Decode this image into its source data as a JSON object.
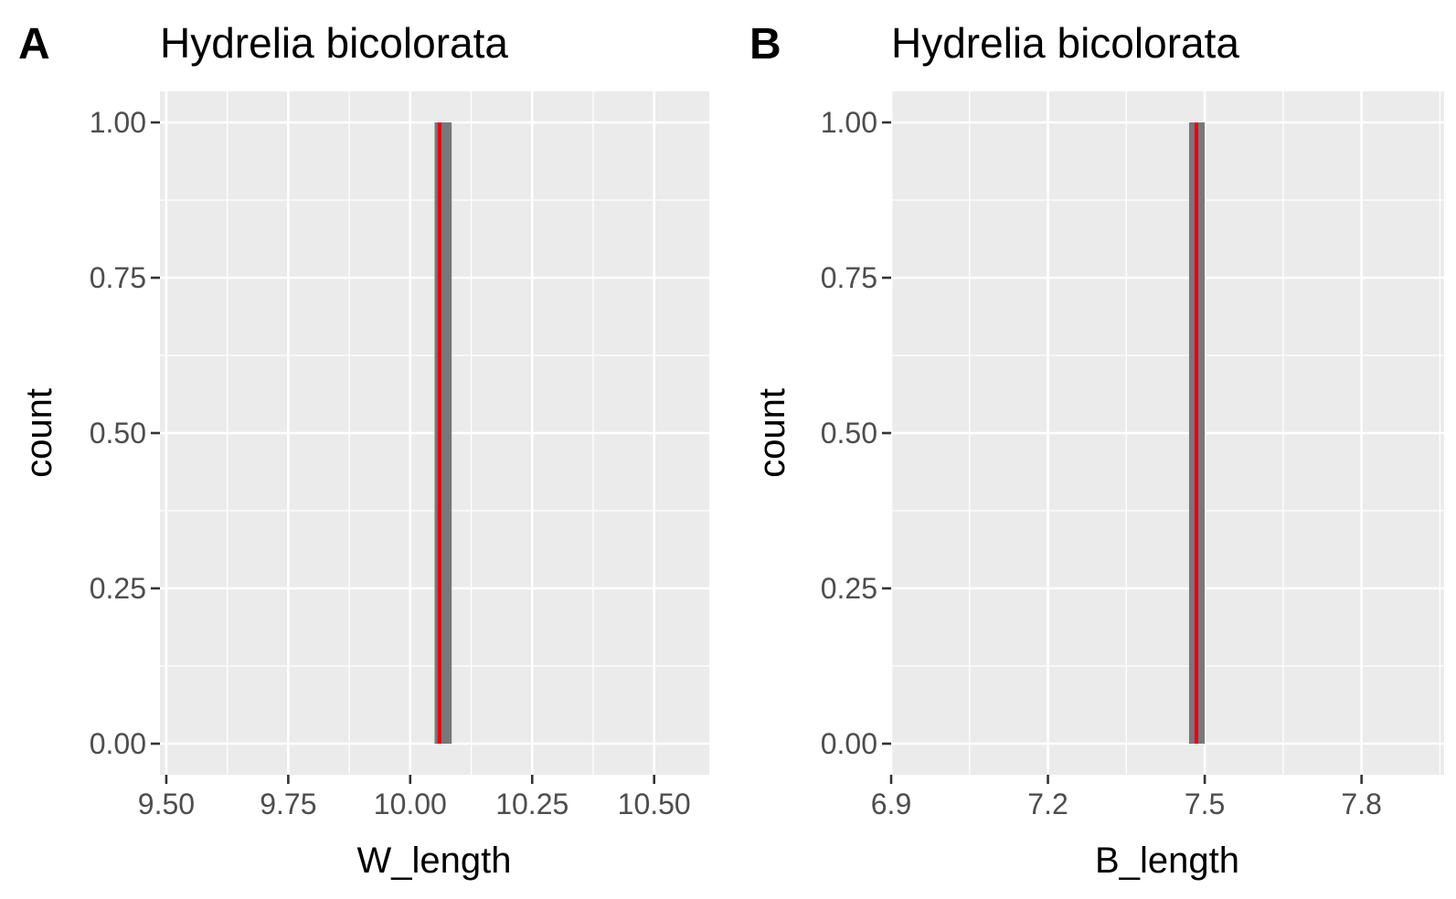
{
  "chart_data": [
    {
      "panel": "A",
      "type": "bar",
      "title": "Hydrelia bicolorata",
      "xlabel": "W_length",
      "ylabel": "count",
      "xlim": [
        9.487,
        10.613
      ],
      "ylim": [
        -0.05,
        1.05
      ],
      "x_major_ticks": [
        9.5,
        9.75,
        10.0,
        10.25,
        10.5
      ],
      "x_tick_labels": [
        "9.50",
        "9.75",
        "10.00",
        "10.25",
        "10.50"
      ],
      "x_minor_ticks": [
        9.625,
        9.875,
        10.125,
        10.375,
        10.625
      ],
      "y_major_ticks": [
        0,
        0.25,
        0.5,
        0.75,
        1.0
      ],
      "y_tick_labels": [
        "0.00",
        "0.25",
        "0.50",
        "0.75",
        "1.00"
      ],
      "y_minor_ticks": [
        0.125,
        0.375,
        0.625,
        0.875
      ],
      "bars": [
        {
          "x_min": 10.05,
          "x_max": 10.085,
          "count": 1
        }
      ],
      "vline": {
        "x": 10.06
      },
      "colors": {
        "bar": "#787878",
        "vline": "#e8000b"
      }
    },
    {
      "panel": "B",
      "type": "bar",
      "title": "Hydrelia bicolorata",
      "xlabel": "B_length",
      "ylabel": "count",
      "xlim": [
        6.9,
        7.958
      ],
      "ylim": [
        -0.05,
        1.05
      ],
      "x_major_ticks": [
        6.9,
        7.2,
        7.5,
        7.8
      ],
      "x_tick_labels": [
        "6.9",
        "7.2",
        "7.5",
        "7.8"
      ],
      "x_minor_ticks": [
        7.05,
        7.35,
        7.65,
        7.95
      ],
      "y_major_ticks": [
        0,
        0.25,
        0.5,
        0.75,
        1.0
      ],
      "y_tick_labels": [
        "0.00",
        "0.25",
        "0.50",
        "0.75",
        "1.00"
      ],
      "y_minor_ticks": [
        0.125,
        0.375,
        0.625,
        0.875
      ],
      "bars": [
        {
          "x_min": 7.47,
          "x_max": 7.5,
          "count": 1
        }
      ],
      "vline": {
        "x": 7.484
      },
      "colors": {
        "bar": "#787878",
        "vline": "#e8000b"
      }
    }
  ]
}
